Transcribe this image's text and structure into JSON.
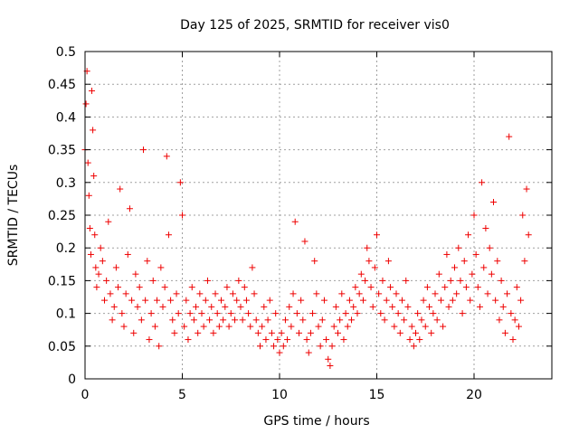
{
  "chart_data": {
    "type": "scatter",
    "title": "Day 125 of 2025, SRMTID for receiver vis0",
    "xlabel": "GPS time / hours",
    "ylabel": "SRMTID / TECUs",
    "xlim": [
      0,
      24
    ],
    "ylim": [
      0,
      0.5
    ],
    "xticks": [
      0,
      5,
      10,
      15,
      20
    ],
    "xtick_labels": [
      "0",
      "5",
      "10",
      "15",
      "20"
    ],
    "yticks": [
      0,
      0.05,
      0.1,
      0.15,
      0.2,
      0.25,
      0.3,
      0.35,
      0.4,
      0.45,
      0.5
    ],
    "ytick_labels": [
      "0",
      "0.05",
      "0.1",
      "0.15",
      "0.2",
      "0.25",
      "0.3",
      "0.35",
      "0.4",
      "0.45",
      "0.5"
    ],
    "grid": true,
    "marker": "plus",
    "color": "#ee0000",
    "series": [
      {
        "name": "SRMTID",
        "points": [
          [
            0.0,
            0.35
          ],
          [
            0.05,
            0.42
          ],
          [
            0.1,
            0.47
          ],
          [
            0.15,
            0.33
          ],
          [
            0.2,
            0.28
          ],
          [
            0.25,
            0.23
          ],
          [
            0.3,
            0.19
          ],
          [
            0.35,
            0.44
          ],
          [
            0.4,
            0.38
          ],
          [
            0.45,
            0.31
          ],
          [
            0.5,
            0.22
          ],
          [
            0.55,
            0.17
          ],
          [
            0.6,
            0.14
          ],
          [
            0.7,
            0.16
          ],
          [
            0.8,
            0.2
          ],
          [
            0.9,
            0.18
          ],
          [
            1.0,
            0.12
          ],
          [
            1.1,
            0.15
          ],
          [
            1.2,
            0.24
          ],
          [
            1.3,
            0.13
          ],
          [
            1.4,
            0.09
          ],
          [
            1.5,
            0.11
          ],
          [
            1.6,
            0.17
          ],
          [
            1.7,
            0.14
          ],
          [
            1.8,
            0.29
          ],
          [
            1.9,
            0.1
          ],
          [
            2.0,
            0.08
          ],
          [
            2.1,
            0.13
          ],
          [
            2.2,
            0.19
          ],
          [
            2.3,
            0.26
          ],
          [
            2.4,
            0.12
          ],
          [
            2.5,
            0.07
          ],
          [
            2.6,
            0.16
          ],
          [
            2.7,
            0.11
          ],
          [
            2.8,
            0.14
          ],
          [
            2.9,
            0.09
          ],
          [
            3.0,
            0.35
          ],
          [
            3.1,
            0.12
          ],
          [
            3.2,
            0.18
          ],
          [
            3.3,
            0.06
          ],
          [
            3.4,
            0.1
          ],
          [
            3.5,
            0.15
          ],
          [
            3.6,
            0.08
          ],
          [
            3.7,
            0.12
          ],
          [
            3.8,
            0.05
          ],
          [
            3.9,
            0.17
          ],
          [
            4.0,
            0.11
          ],
          [
            4.1,
            0.14
          ],
          [
            4.2,
            0.34
          ],
          [
            4.3,
            0.22
          ],
          [
            4.4,
            0.12
          ],
          [
            4.5,
            0.09
          ],
          [
            4.6,
            0.07
          ],
          [
            4.7,
            0.13
          ],
          [
            4.8,
            0.1
          ],
          [
            4.9,
            0.3
          ],
          [
            5.0,
            0.25
          ],
          [
            5.1,
            0.08
          ],
          [
            5.2,
            0.12
          ],
          [
            5.3,
            0.06
          ],
          [
            5.4,
            0.1
          ],
          [
            5.5,
            0.14
          ],
          [
            5.6,
            0.09
          ],
          [
            5.7,
            0.11
          ],
          [
            5.8,
            0.07
          ],
          [
            5.9,
            0.13
          ],
          [
            6.0,
            0.1
          ],
          [
            6.1,
            0.08
          ],
          [
            6.2,
            0.12
          ],
          [
            6.3,
            0.15
          ],
          [
            6.4,
            0.09
          ],
          [
            6.5,
            0.11
          ],
          [
            6.6,
            0.07
          ],
          [
            6.7,
            0.13
          ],
          [
            6.8,
            0.1
          ],
          [
            6.9,
            0.08
          ],
          [
            7.0,
            0.12
          ],
          [
            7.1,
            0.09
          ],
          [
            7.2,
            0.11
          ],
          [
            7.3,
            0.14
          ],
          [
            7.4,
            0.08
          ],
          [
            7.5,
            0.1
          ],
          [
            7.6,
            0.13
          ],
          [
            7.7,
            0.09
          ],
          [
            7.8,
            0.12
          ],
          [
            7.9,
            0.15
          ],
          [
            8.0,
            0.11
          ],
          [
            8.1,
            0.09
          ],
          [
            8.2,
            0.14
          ],
          [
            8.3,
            0.12
          ],
          [
            8.4,
            0.1
          ],
          [
            8.5,
            0.08
          ],
          [
            8.6,
            0.17
          ],
          [
            8.7,
            0.13
          ],
          [
            8.8,
            0.09
          ],
          [
            8.9,
            0.07
          ],
          [
            9.0,
            0.05
          ],
          [
            9.1,
            0.08
          ],
          [
            9.2,
            0.11
          ],
          [
            9.3,
            0.06
          ],
          [
            9.4,
            0.09
          ],
          [
            9.5,
            0.12
          ],
          [
            9.6,
            0.07
          ],
          [
            9.7,
            0.05
          ],
          [
            9.8,
            0.1
          ],
          [
            9.9,
            0.06
          ],
          [
            10.0,
            0.04
          ],
          [
            10.1,
            0.07
          ],
          [
            10.2,
            0.05
          ],
          [
            10.3,
            0.09
          ],
          [
            10.4,
            0.06
          ],
          [
            10.5,
            0.11
          ],
          [
            10.6,
            0.08
          ],
          [
            10.7,
            0.13
          ],
          [
            10.8,
            0.24
          ],
          [
            10.9,
            0.1
          ],
          [
            11.0,
            0.07
          ],
          [
            11.1,
            0.12
          ],
          [
            11.2,
            0.09
          ],
          [
            11.3,
            0.21
          ],
          [
            11.4,
            0.06
          ],
          [
            11.5,
            0.04
          ],
          [
            11.6,
            0.07
          ],
          [
            11.7,
            0.1
          ],
          [
            11.8,
            0.18
          ],
          [
            11.9,
            0.13
          ],
          [
            12.0,
            0.08
          ],
          [
            12.1,
            0.05
          ],
          [
            12.2,
            0.09
          ],
          [
            12.3,
            0.12
          ],
          [
            12.4,
            0.06
          ],
          [
            12.5,
            0.03
          ],
          [
            12.6,
            0.02
          ],
          [
            12.7,
            0.05
          ],
          [
            12.8,
            0.08
          ],
          [
            12.9,
            0.11
          ],
          [
            13.0,
            0.07
          ],
          [
            13.1,
            0.09
          ],
          [
            13.2,
            0.13
          ],
          [
            13.3,
            0.06
          ],
          [
            13.4,
            0.1
          ],
          [
            13.5,
            0.08
          ],
          [
            13.6,
            0.12
          ],
          [
            13.7,
            0.09
          ],
          [
            13.8,
            0.11
          ],
          [
            13.9,
            0.14
          ],
          [
            14.0,
            0.1
          ],
          [
            14.1,
            0.13
          ],
          [
            14.2,
            0.16
          ],
          [
            14.3,
            0.12
          ],
          [
            14.4,
            0.15
          ],
          [
            14.5,
            0.2
          ],
          [
            14.6,
            0.18
          ],
          [
            14.7,
            0.14
          ],
          [
            14.8,
            0.11
          ],
          [
            14.9,
            0.17
          ],
          [
            15.0,
            0.22
          ],
          [
            15.1,
            0.13
          ],
          [
            15.2,
            0.1
          ],
          [
            15.3,
            0.15
          ],
          [
            15.4,
            0.09
          ],
          [
            15.5,
            0.12
          ],
          [
            15.6,
            0.18
          ],
          [
            15.7,
            0.14
          ],
          [
            15.8,
            0.11
          ],
          [
            15.9,
            0.08
          ],
          [
            16.0,
            0.13
          ],
          [
            16.1,
            0.1
          ],
          [
            16.2,
            0.07
          ],
          [
            16.3,
            0.12
          ],
          [
            16.4,
            0.09
          ],
          [
            16.5,
            0.15
          ],
          [
            16.6,
            0.11
          ],
          [
            16.7,
            0.06
          ],
          [
            16.8,
            0.08
          ],
          [
            16.9,
            0.05
          ],
          [
            17.0,
            0.07
          ],
          [
            17.1,
            0.1
          ],
          [
            17.2,
            0.06
          ],
          [
            17.3,
            0.09
          ],
          [
            17.4,
            0.12
          ],
          [
            17.5,
            0.08
          ],
          [
            17.6,
            0.14
          ],
          [
            17.7,
            0.11
          ],
          [
            17.8,
            0.07
          ],
          [
            17.9,
            0.1
          ],
          [
            18.0,
            0.13
          ],
          [
            18.1,
            0.09
          ],
          [
            18.2,
            0.16
          ],
          [
            18.3,
            0.12
          ],
          [
            18.4,
            0.08
          ],
          [
            18.5,
            0.14
          ],
          [
            18.6,
            0.19
          ],
          [
            18.7,
            0.11
          ],
          [
            18.8,
            0.15
          ],
          [
            18.9,
            0.12
          ],
          [
            19.0,
            0.17
          ],
          [
            19.1,
            0.13
          ],
          [
            19.2,
            0.2
          ],
          [
            19.3,
            0.15
          ],
          [
            19.4,
            0.1
          ],
          [
            19.5,
            0.18
          ],
          [
            19.6,
            0.14
          ],
          [
            19.7,
            0.22
          ],
          [
            19.8,
            0.12
          ],
          [
            19.9,
            0.16
          ],
          [
            20.0,
            0.25
          ],
          [
            20.1,
            0.19
          ],
          [
            20.2,
            0.14
          ],
          [
            20.3,
            0.11
          ],
          [
            20.4,
            0.3
          ],
          [
            20.5,
            0.17
          ],
          [
            20.6,
            0.23
          ],
          [
            20.7,
            0.13
          ],
          [
            20.8,
            0.2
          ],
          [
            20.9,
            0.16
          ],
          [
            21.0,
            0.27
          ],
          [
            21.1,
            0.12
          ],
          [
            21.2,
            0.18
          ],
          [
            21.3,
            0.09
          ],
          [
            21.4,
            0.15
          ],
          [
            21.5,
            0.11
          ],
          [
            21.6,
            0.07
          ],
          [
            21.7,
            0.13
          ],
          [
            21.8,
            0.37
          ],
          [
            21.9,
            0.1
          ],
          [
            22.0,
            0.06
          ],
          [
            22.1,
            0.09
          ],
          [
            22.2,
            0.14
          ],
          [
            22.3,
            0.08
          ],
          [
            22.4,
            0.12
          ],
          [
            22.5,
            0.25
          ],
          [
            22.6,
            0.18
          ],
          [
            22.7,
            0.29
          ],
          [
            22.8,
            0.22
          ]
        ]
      }
    ]
  }
}
